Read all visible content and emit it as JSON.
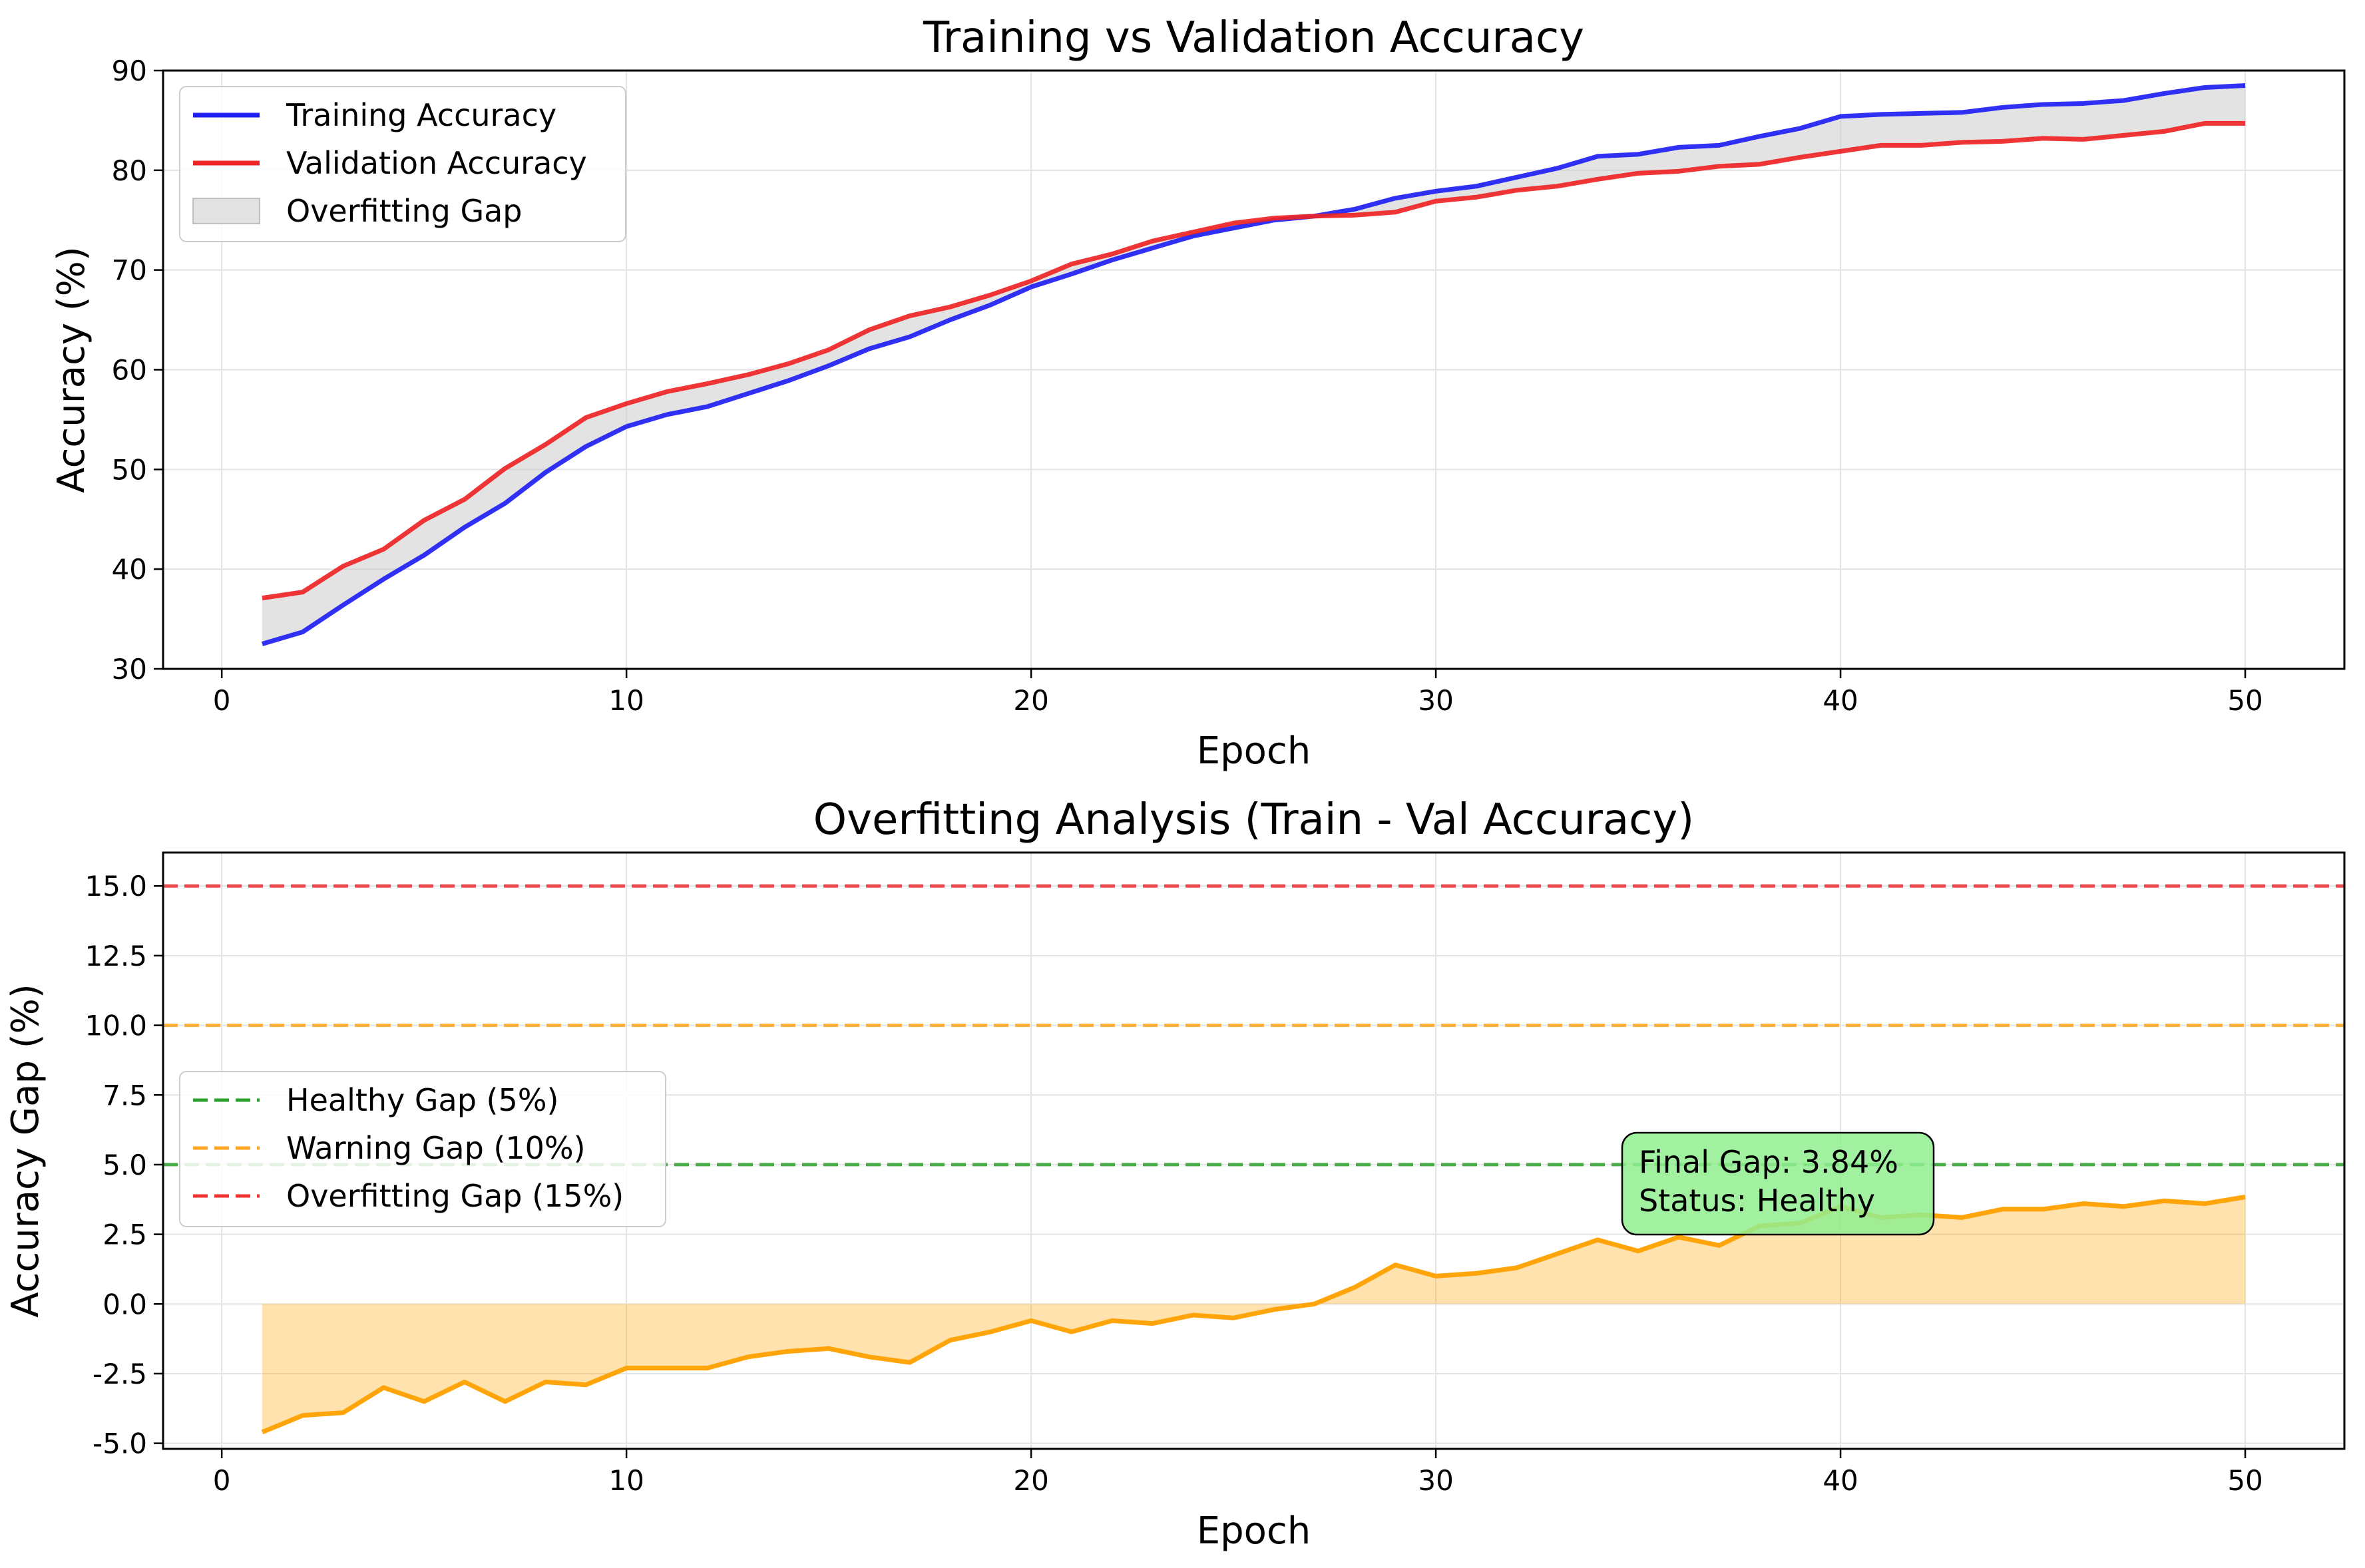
{
  "chart_data": [
    {
      "type": "line",
      "title": "Training vs Validation Accuracy",
      "xlabel": "Epoch",
      "ylabel": "Accuracy (%)",
      "xlim": [
        -1.45,
        52.45
      ],
      "ylim": [
        30,
        90
      ],
      "xticks": [
        0,
        10,
        20,
        30,
        40,
        50
      ],
      "yticks": [
        30,
        40,
        50,
        60,
        70,
        80,
        90
      ],
      "grid": true,
      "legend_position": "upper left",
      "x": [
        1,
        2,
        3,
        4,
        5,
        6,
        7,
        8,
        9,
        10,
        11,
        12,
        13,
        14,
        15,
        16,
        17,
        18,
        19,
        20,
        21,
        22,
        23,
        24,
        25,
        26,
        27,
        28,
        29,
        30,
        31,
        32,
        33,
        34,
        35,
        36,
        37,
        38,
        39,
        40,
        41,
        42,
        43,
        44,
        45,
        46,
        47,
        48,
        49,
        50
      ],
      "series": [
        {
          "name": "Training Accuracy",
          "color": "#1f1ff5",
          "values": [
            32.5,
            33.7,
            36.4,
            39.0,
            41.4,
            44.2,
            46.6,
            49.7,
            52.3,
            54.3,
            55.5,
            56.3,
            57.6,
            58.9,
            60.4,
            62.1,
            63.3,
            65.0,
            66.5,
            68.3,
            69.6,
            71.0,
            72.2,
            73.4,
            74.2,
            75.0,
            75.4,
            76.1,
            77.2,
            77.9,
            78.4,
            79.3,
            80.2,
            81.4,
            81.6,
            82.3,
            82.5,
            83.4,
            84.2,
            85.4,
            85.6,
            85.7,
            85.8,
            86.3,
            86.6,
            86.7,
            87.0,
            87.7,
            88.3,
            88.5
          ]
        },
        {
          "name": "Validation Accuracy",
          "color": "#ee2424",
          "values": [
            37.1,
            37.7,
            40.3,
            42.0,
            44.9,
            47.0,
            50.1,
            52.5,
            55.2,
            56.6,
            57.8,
            58.6,
            59.5,
            60.6,
            62.0,
            64.0,
            65.4,
            66.3,
            67.5,
            68.9,
            70.6,
            71.6,
            72.9,
            73.8,
            74.7,
            75.2,
            75.4,
            75.5,
            75.8,
            76.9,
            77.3,
            78.0,
            78.4,
            79.1,
            79.7,
            79.9,
            80.4,
            80.6,
            81.3,
            81.9,
            82.5,
            82.5,
            82.8,
            82.9,
            83.2,
            83.1,
            83.5,
            83.9,
            84.7,
            84.7
          ]
        }
      ],
      "fill_between": {
        "name": "Overfitting Gap",
        "color": "#c8c8c8"
      }
    },
    {
      "type": "area",
      "title": "Overfitting Analysis (Train - Val Accuracy)",
      "xlabel": "Epoch",
      "ylabel": "Accuracy Gap (%)",
      "xlim": [
        -1.45,
        52.45
      ],
      "ylim": [
        -5.2,
        16.2
      ],
      "xticks": [
        0,
        10,
        20,
        30,
        40,
        50
      ],
      "yticks": [
        -5.0,
        -2.5,
        0.0,
        2.5,
        5.0,
        7.5,
        10.0,
        12.5,
        15.0
      ],
      "grid": true,
      "legend_position": "center left",
      "x": [
        1,
        2,
        3,
        4,
        5,
        6,
        7,
        8,
        9,
        10,
        11,
        12,
        13,
        14,
        15,
        16,
        17,
        18,
        19,
        20,
        21,
        22,
        23,
        24,
        25,
        26,
        27,
        28,
        29,
        30,
        31,
        32,
        33,
        34,
        35,
        36,
        37,
        38,
        39,
        40,
        41,
        42,
        43,
        44,
        45,
        46,
        47,
        48,
        49,
        50
      ],
      "series": [
        {
          "color": "#ffa50a",
          "values": [
            -4.6,
            -4.0,
            -3.9,
            -3.0,
            -3.5,
            -2.8,
            -3.5,
            -2.8,
            -2.9,
            -2.3,
            -2.3,
            -2.3,
            -1.9,
            -1.7,
            -1.6,
            -1.9,
            -2.1,
            -1.3,
            -1.0,
            -0.6,
            -1.0,
            -0.6,
            -0.7,
            -0.4,
            -0.5,
            -0.2,
            0.0,
            0.6,
            1.4,
            1.0,
            1.1,
            1.3,
            1.8,
            2.3,
            1.9,
            2.4,
            2.1,
            2.8,
            2.9,
            3.5,
            3.1,
            3.2,
            3.1,
            3.4,
            3.4,
            3.6,
            3.5,
            3.7,
            3.6,
            3.84
          ]
        }
      ],
      "reference_lines": [
        {
          "name": "Healthy Gap (5%)",
          "y": 5,
          "color": "#2ca02c"
        },
        {
          "name": "Warning Gap (10%)",
          "y": 10,
          "color": "#ffa520"
        },
        {
          "name": "Overfitting Gap (15%)",
          "y": 15,
          "color": "#ee3030"
        }
      ],
      "annotation": {
        "line1": "Final Gap: 3.84%",
        "line2": "Status: Healthy",
        "color": "#90ee90"
      }
    }
  ]
}
